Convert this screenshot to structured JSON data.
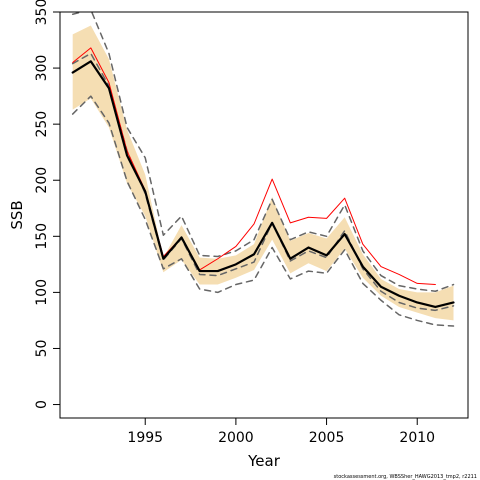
{
  "chart_data": {
    "type": "line",
    "xlabel": "Year",
    "ylabel": "SSB",
    "xlim": [
      1990.3,
      1912.8
    ],
    "ylim": [
      -12,
      350
    ],
    "x_ticks": [
      1995,
      2000,
      2005,
      2010
    ],
    "y_ticks": [
      0,
      50,
      100,
      150,
      200,
      250,
      300,
      350
    ],
    "credit": "stockassessment.org, WBSSher_HAWG2013_tmp2, r2211",
    "colors": {
      "band": "#f5deb3",
      "central": "#000000",
      "dashed": "#666666",
      "red": "#ff0000"
    },
    "x": [
      1991,
      1992,
      1993,
      1994,
      1995,
      1996,
      1997,
      1998,
      1999,
      2000,
      2001,
      2002,
      2003,
      2004,
      2005,
      2006,
      2007,
      2008,
      2009,
      2010,
      2011,
      2012
    ],
    "series": [
      {
        "role": "band-upper",
        "values": [
          330,
          338,
          308,
          245,
          205,
          131,
          160,
          131,
          130,
          133,
          143,
          185,
          146,
          153,
          148,
          167,
          134,
          112,
          103,
          100,
          100,
          106
        ]
      },
      {
        "role": "band-lower",
        "values": [
          263,
          273,
          247,
          197,
          168,
          118,
          129,
          107,
          107,
          113,
          120,
          147,
          117,
          126,
          119,
          139,
          113,
          97,
          87,
          82,
          77,
          75
        ]
      },
      {
        "role": "estimate",
        "values": [
          296,
          306,
          282,
          222,
          190,
          130,
          149,
          119,
          119,
          125,
          134,
          162,
          130,
          140,
          133,
          152,
          123,
          105,
          97,
          91,
          87,
          91
        ]
      },
      {
        "role": "dashed-upper",
        "values": [
          348,
          352,
          313,
          247,
          220,
          151,
          168,
          133,
          132,
          137,
          147,
          183,
          147,
          154,
          150,
          178,
          137,
          115,
          106,
          103,
          101,
          107
        ]
      },
      {
        "role": "dashed-lower",
        "values": [
          259,
          275,
          251,
          199,
          165,
          121,
          130,
          103,
          100,
          107,
          111,
          140,
          112,
          119,
          117,
          138,
          108,
          93,
          80,
          75,
          71,
          70
        ]
      },
      {
        "role": "dashed-mid",
        "values": [
          304,
          313,
          284,
          226,
          188,
          129,
          148,
          116,
          115,
          121,
          127,
          162,
          128,
          137,
          131,
          155,
          121,
          101,
          91,
          86,
          84,
          88
        ]
      },
      {
        "role": "red",
        "values": [
          305,
          318,
          287,
          226,
          191,
          132,
          149,
          120,
          130,
          141,
          161,
          201,
          162,
          167,
          166,
          184,
          143,
          123,
          116,
          108,
          107,
          null
        ]
      }
    ]
  }
}
